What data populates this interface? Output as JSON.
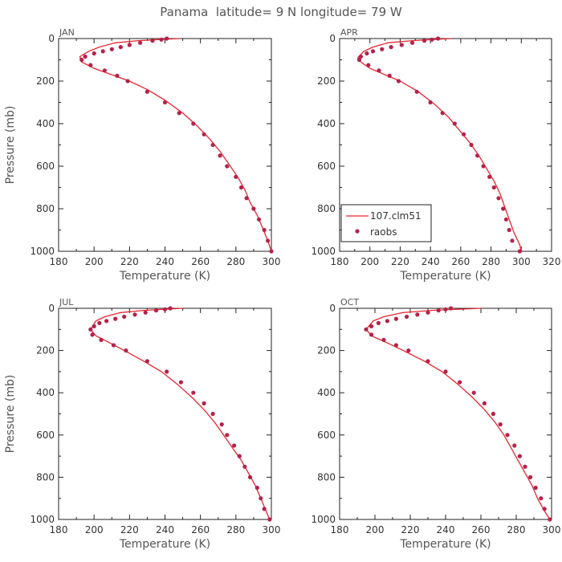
{
  "title": "Panama  latitude= 9 N longitude= 79 W",
  "colors": {
    "model": "#e8262e",
    "obs": "#b5224a"
  },
  "chart_data": [
    {
      "type": "line",
      "panel": "JAN",
      "xlabel": "Temperature (K)",
      "ylabel": "Pressure (mb)",
      "xlim": [
        180,
        300
      ],
      "ylim": [
        1000,
        0
      ],
      "xticks": [
        180,
        200,
        220,
        240,
        260,
        280,
        300
      ],
      "yticks": [
        0,
        200,
        400,
        600,
        800,
        1000
      ],
      "series": [
        {
          "name": "107.clm51",
          "style": "line",
          "points": [
            [
              248,
              0
            ],
            [
              225,
              10
            ],
            [
              212,
              20
            ],
            [
              203,
              40
            ],
            [
              197,
              60
            ],
            [
              192,
              85
            ],
            [
              193,
              110
            ],
            [
              200,
              140
            ],
            [
              210,
              170
            ],
            [
              220,
              200
            ],
            [
              230,
              240
            ],
            [
              240,
              290
            ],
            [
              250,
              350
            ],
            [
              258,
              410
            ],
            [
              265,
              470
            ],
            [
              271,
              530
            ],
            [
              276,
              590
            ],
            [
              281,
              650
            ],
            [
              285,
              710
            ],
            [
              288,
              770
            ],
            [
              292,
              830
            ],
            [
              295,
              890
            ],
            [
              298,
              950
            ],
            [
              300,
              1000
            ]
          ]
        },
        {
          "name": "raobs",
          "style": "scatter",
          "points": [
            [
              241,
              0
            ],
            [
              238,
              5
            ],
            [
              233,
              10
            ],
            [
              226,
              20
            ],
            [
              220,
              30
            ],
            [
              215,
              40
            ],
            [
              210,
              50
            ],
            [
              205,
              60
            ],
            [
              200,
              70
            ],
            [
              195,
              85
            ],
            [
              193,
              100
            ],
            [
              198,
              125
            ],
            [
              206,
              150
            ],
            [
              213,
              175
            ],
            [
              219,
              200
            ],
            [
              230,
              250
            ],
            [
              240,
              300
            ],
            [
              248,
              350
            ],
            [
              256,
              400
            ],
            [
              262,
              450
            ],
            [
              267,
              500
            ],
            [
              271,
              550
            ],
            [
              275,
              600
            ],
            [
              280,
              650
            ],
            [
              283,
              700
            ],
            [
              286,
              750
            ],
            [
              290,
              800
            ],
            [
              293,
              850
            ],
            [
              296,
              900
            ],
            [
              298,
              950
            ],
            [
              300,
              1000
            ]
          ]
        }
      ]
    },
    {
      "type": "line",
      "panel": "APR",
      "xlabel": "Temperature (K)",
      "ylabel": "",
      "xlim": [
        180,
        320
      ],
      "ylim": [
        1000,
        0
      ],
      "xticks": [
        180,
        200,
        220,
        240,
        260,
        280,
        300,
        320
      ],
      "yticks": [
        0,
        200,
        400,
        600,
        800,
        1000
      ],
      "legend": {
        "placement": "bottom-left",
        "entries": [
          "107.clm51",
          "raobs"
        ]
      },
      "series": [
        {
          "name": "107.clm51",
          "style": "line",
          "points": [
            [
              254,
              0
            ],
            [
              228,
              10
            ],
            [
              212,
              20
            ],
            [
              202,
              40
            ],
            [
              196,
              60
            ],
            [
              192,
              90
            ],
            [
              194,
              110
            ],
            [
              200,
              140
            ],
            [
              210,
              170
            ],
            [
              220,
              200
            ],
            [
              232,
              250
            ],
            [
              243,
              310
            ],
            [
              252,
              370
            ],
            [
              259,
              430
            ],
            [
              266,
              490
            ],
            [
              272,
              550
            ],
            [
              277,
              610
            ],
            [
              282,
              670
            ],
            [
              286,
              730
            ],
            [
              289,
              790
            ],
            [
              292,
              850
            ],
            [
              295,
              910
            ],
            [
              299,
              970
            ],
            [
              300,
              1000
            ]
          ]
        },
        {
          "name": "raobs",
          "style": "scatter",
          "points": [
            [
              245,
              0
            ],
            [
              241,
              5
            ],
            [
              236,
              10
            ],
            [
              228,
              20
            ],
            [
              221,
              30
            ],
            [
              214,
              40
            ],
            [
              208,
              50
            ],
            [
              202,
              60
            ],
            [
              198,
              70
            ],
            [
              194,
              85
            ],
            [
              193,
              100
            ],
            [
              199,
              125
            ],
            [
              206,
              150
            ],
            [
              213,
              175
            ],
            [
              219,
              200
            ],
            [
              231,
              250
            ],
            [
              240,
              300
            ],
            [
              248,
              350
            ],
            [
              256,
              400
            ],
            [
              262,
              450
            ],
            [
              267,
              500
            ],
            [
              271,
              550
            ],
            [
              275,
              600
            ],
            [
              279,
              650
            ],
            [
              282,
              700
            ],
            [
              285,
              750
            ],
            [
              288,
              800
            ],
            [
              290,
              850
            ],
            [
              292,
              900
            ],
            [
              294,
              950
            ],
            [
              299,
              1000
            ]
          ]
        }
      ]
    },
    {
      "type": "line",
      "panel": "JUL",
      "xlabel": "Temperature (K)",
      "ylabel": "Pressure (mb)",
      "xlim": [
        180,
        300
      ],
      "ylim": [
        1000,
        0
      ],
      "xticks": [
        180,
        200,
        220,
        240,
        260,
        280,
        300
      ],
      "yticks": [
        0,
        200,
        400,
        600,
        800,
        1000
      ],
      "series": [
        {
          "name": "107.clm51",
          "style": "line",
          "points": [
            [
              250,
              0
            ],
            [
              228,
              10
            ],
            [
              215,
              20
            ],
            [
              206,
              40
            ],
            [
              201,
              60
            ],
            [
              198,
              100
            ],
            [
              201,
              130
            ],
            [
              208,
              160
            ],
            [
              217,
              200
            ],
            [
              228,
              250
            ],
            [
              238,
              300
            ],
            [
              247,
              360
            ],
            [
              255,
              420
            ],
            [
              262,
              480
            ],
            [
              268,
              540
            ],
            [
              273,
              600
            ],
            [
              278,
              660
            ],
            [
              283,
              720
            ],
            [
              287,
              780
            ],
            [
              291,
              840
            ],
            [
              294,
              900
            ],
            [
              297,
              960
            ],
            [
              299,
              1000
            ]
          ]
        },
        {
          "name": "raobs",
          "style": "scatter",
          "points": [
            [
              243,
              0
            ],
            [
              240,
              5
            ],
            [
              235,
              10
            ],
            [
              229,
              20
            ],
            [
              223,
              30
            ],
            [
              217,
              40
            ],
            [
              212,
              50
            ],
            [
              207,
              60
            ],
            [
              203,
              70
            ],
            [
              200,
              85
            ],
            [
              198,
              100
            ],
            [
              199,
              125
            ],
            [
              204,
              150
            ],
            [
              211,
              175
            ],
            [
              218,
              200
            ],
            [
              230,
              250
            ],
            [
              241,
              300
            ],
            [
              249,
              350
            ],
            [
              256,
              400
            ],
            [
              262,
              450
            ],
            [
              267,
              500
            ],
            [
              272,
              550
            ],
            [
              275,
              600
            ],
            [
              279,
              650
            ],
            [
              282,
              700
            ],
            [
              285,
              750
            ],
            [
              288,
              800
            ],
            [
              292,
              850
            ],
            [
              294,
              900
            ],
            [
              296,
              950
            ],
            [
              299,
              1000
            ]
          ]
        }
      ]
    },
    {
      "type": "line",
      "panel": "OCT",
      "xlabel": "Temperature (K)",
      "ylabel": "",
      "xlim": [
        180,
        300
      ],
      "ylim": [
        1000,
        0
      ],
      "xticks": [
        180,
        200,
        220,
        240,
        260,
        280,
        300
      ],
      "yticks": [
        0,
        200,
        400,
        600,
        800,
        1000
      ],
      "series": [
        {
          "name": "107.clm51",
          "style": "line",
          "points": [
            [
              260,
              0
            ],
            [
              232,
              10
            ],
            [
              216,
              20
            ],
            [
              205,
              40
            ],
            [
              199,
              60
            ],
            [
              195,
              100
            ],
            [
              198,
              130
            ],
            [
              206,
              160
            ],
            [
              216,
              200
            ],
            [
              228,
              250
            ],
            [
              238,
              300
            ],
            [
              247,
              360
            ],
            [
              255,
              420
            ],
            [
              262,
              480
            ],
            [
              268,
              540
            ],
            [
              273,
              600
            ],
            [
              277,
              660
            ],
            [
              281,
              720
            ],
            [
              285,
              780
            ],
            [
              289,
              840
            ],
            [
              292,
              900
            ],
            [
              296,
              960
            ],
            [
              299,
              1000
            ]
          ]
        },
        {
          "name": "raobs",
          "style": "scatter",
          "points": [
            [
              243,
              0
            ],
            [
              240,
              5
            ],
            [
              236,
              10
            ],
            [
              230,
              20
            ],
            [
              224,
              30
            ],
            [
              218,
              40
            ],
            [
              212,
              50
            ],
            [
              207,
              60
            ],
            [
              202,
              70
            ],
            [
              198,
              85
            ],
            [
              195,
              100
            ],
            [
              198,
              125
            ],
            [
              205,
              150
            ],
            [
              212,
              175
            ],
            [
              219,
              200
            ],
            [
              230,
              250
            ],
            [
              240,
              300
            ],
            [
              248,
              350
            ],
            [
              256,
              400
            ],
            [
              262,
              450
            ],
            [
              267,
              500
            ],
            [
              271,
              550
            ],
            [
              275,
              600
            ],
            [
              279,
              650
            ],
            [
              282,
              700
            ],
            [
              285,
              750
            ],
            [
              288,
              800
            ],
            [
              291,
              850
            ],
            [
              294,
              900
            ],
            [
              296,
              950
            ],
            [
              299,
              1000
            ]
          ]
        }
      ]
    }
  ]
}
